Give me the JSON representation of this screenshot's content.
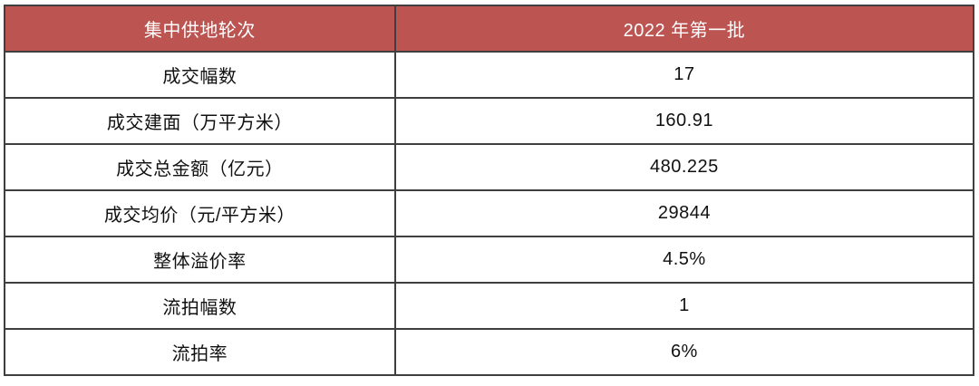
{
  "table": {
    "header": {
      "round_label": "集中供地轮次",
      "batch_label": "2022 年第一批"
    },
    "rows": [
      {
        "label": "成交幅数",
        "value": "17"
      },
      {
        "label": "成交建面（万平方米）",
        "value": "160.91"
      },
      {
        "label": "成交总金额（亿元）",
        "value": "480.225"
      },
      {
        "label": "成交均价（元/平方米）",
        "value": "29844"
      },
      {
        "label": "整体溢价率",
        "value": "4.5%"
      },
      {
        "label": "流拍幅数",
        "value": "1"
      },
      {
        "label": "流拍率",
        "value": "6%"
      }
    ],
    "colors": {
      "header_bg": "#bc5451",
      "header_text": "#ffffff",
      "border": "#3f3f3f",
      "body_text": "#111111"
    }
  }
}
